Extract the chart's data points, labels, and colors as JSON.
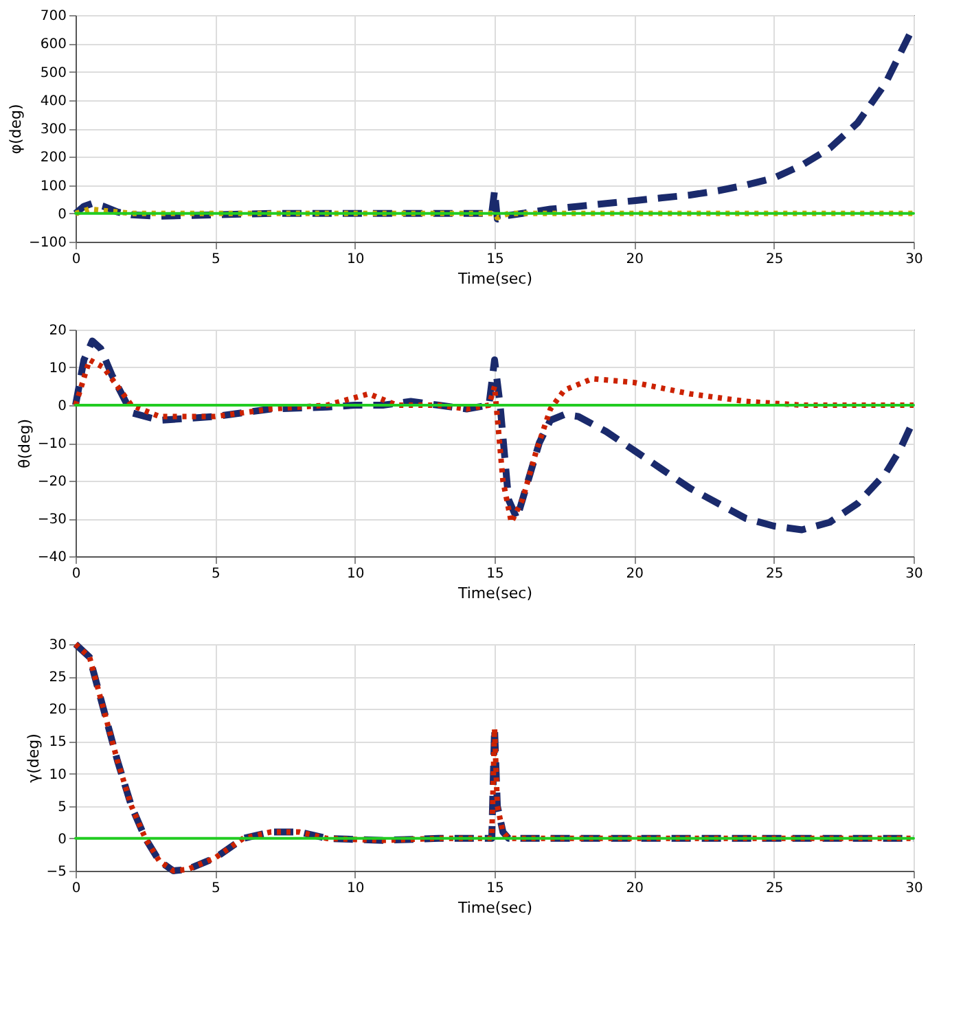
{
  "chart_data": [
    {
      "type": "line",
      "xlabel": "Time(sec)",
      "ylabel": "φ(deg)",
      "xlim": [
        0,
        30
      ],
      "xticks": [
        0,
        5,
        10,
        15,
        20,
        25,
        30
      ],
      "ylim": [
        -100,
        700
      ],
      "yticks": [
        -100,
        0,
        100,
        200,
        300,
        400,
        500,
        600,
        700
      ],
      "grid": true,
      "series": [
        {
          "color": "#1a2a6c",
          "line_style": "dashed",
          "x": [
            0,
            0.3,
            0.6,
            1,
            1.5,
            2,
            3,
            5,
            7,
            10,
            13,
            14.9,
            15,
            15.1,
            15.3,
            16,
            17,
            18,
            19,
            20,
            21,
            22,
            23,
            24,
            25,
            26,
            27,
            28,
            29,
            30
          ],
          "values": [
            0,
            25,
            35,
            25,
            5,
            -5,
            -10,
            -5,
            0,
            0,
            0,
            0,
            80,
            -20,
            -10,
            0,
            15,
            25,
            35,
            45,
            55,
            65,
            80,
            100,
            125,
            170,
            230,
            320,
            460,
            660
          ]
        },
        {
          "color": "#c8a800",
          "line_style": "dotted",
          "x": [
            0,
            0.5,
            1,
            2,
            15,
            15.1,
            15.5,
            30
          ],
          "values": [
            0,
            15,
            10,
            0,
            0,
            -15,
            0,
            0
          ]
        },
        {
          "color": "#22cc22",
          "line_style": "solid",
          "x": [
            0,
            30
          ],
          "values": [
            0,
            0
          ]
        }
      ]
    },
    {
      "type": "line",
      "xlabel": "Time(sec)",
      "ylabel": "θ(deg)",
      "xlim": [
        0,
        30
      ],
      "xticks": [
        0,
        5,
        10,
        15,
        20,
        25,
        30
      ],
      "ylim": [
        -40,
        20
      ],
      "yticks": [
        -40,
        -30,
        -20,
        -10,
        0,
        10,
        20
      ],
      "grid": true,
      "series": [
        {
          "color": "#1a2a6c",
          "line_style": "dashed",
          "x": [
            0,
            0.3,
            0.6,
            0.9,
            1.3,
            2,
            3,
            5,
            7,
            9,
            10,
            11,
            12,
            13,
            14,
            14.8,
            15,
            15.2,
            15.5,
            15.8,
            16.2,
            16.6,
            17,
            17.5,
            18,
            19,
            20,
            21,
            22,
            23,
            24,
            25,
            26,
            27,
            28,
            29,
            29.5,
            30
          ],
          "values": [
            0,
            12,
            17,
            15,
            8,
            -2,
            -4,
            -3,
            -1,
            -0.5,
            0,
            0,
            1,
            0,
            -1,
            0,
            12,
            0,
            -25,
            -30,
            -20,
            -10,
            -4,
            -2.5,
            -3,
            -7,
            -12,
            -17,
            -22,
            -26,
            -30,
            -32,
            -33,
            -31,
            -26,
            -18,
            -12,
            -4
          ]
        },
        {
          "color": "#cc2200",
          "line_style": "dotted",
          "x": [
            0,
            0.5,
            1,
            2,
            3,
            5,
            7,
            9,
            10.5,
            11.5,
            13,
            14,
            14.8,
            15,
            15.3,
            15.6,
            16,
            16.5,
            17,
            17.5,
            18.5,
            20,
            22,
            24,
            26,
            30
          ],
          "values": [
            0,
            12,
            10,
            0,
            -3,
            -3,
            -1,
            0,
            3,
            0,
            0,
            -1,
            0,
            5,
            -20,
            -31,
            -25,
            -12,
            -1,
            4,
            7,
            6,
            3,
            1,
            0,
            0
          ]
        },
        {
          "color": "#22cc22",
          "line_style": "solid",
          "x": [
            0,
            30
          ],
          "values": [
            0,
            0
          ]
        }
      ]
    },
    {
      "type": "line",
      "xlabel": "Time(sec)",
      "ylabel": "γ(deg)",
      "xlim": [
        0,
        30
      ],
      "xticks": [
        0,
        5,
        10,
        15,
        20,
        25,
        30
      ],
      "ylim": [
        -5,
        30
      ],
      "yticks": [
        -5,
        0,
        5,
        10,
        15,
        20,
        25,
        30
      ],
      "grid": true,
      "series": [
        {
          "color": "#1a2a6c",
          "line_style": "dashed",
          "x": [
            0,
            0.5,
            1,
            1.5,
            2,
            2.5,
            3,
            3.5,
            4,
            5,
            6,
            7,
            8,
            9,
            11,
            13,
            14.9,
            15,
            15.1,
            15.3,
            15.5,
            30
          ],
          "values": [
            30,
            28,
            20,
            12,
            5,
            0,
            -3.5,
            -5,
            -4.8,
            -3,
            0,
            1,
            1,
            0,
            -0.3,
            0,
            0,
            17,
            5,
            1,
            0,
            0
          ]
        },
        {
          "color": "#cc2200",
          "line_style": "dotted",
          "x": [
            0,
            0.5,
            1,
            1.5,
            2,
            2.5,
            3,
            3.5,
            4,
            5,
            6,
            7,
            8,
            9,
            11,
            13,
            14.9,
            15,
            15.1,
            15.3,
            15.5,
            30
          ],
          "values": [
            30,
            28,
            20,
            12,
            5,
            0,
            -3.5,
            -5,
            -4.8,
            -3,
            0,
            1,
            1,
            0,
            -0.3,
            0,
            0,
            17,
            5,
            1,
            0,
            0
          ]
        },
        {
          "color": "#22cc22",
          "line_style": "solid",
          "x": [
            0,
            30
          ],
          "values": [
            0,
            0
          ]
        }
      ]
    }
  ]
}
